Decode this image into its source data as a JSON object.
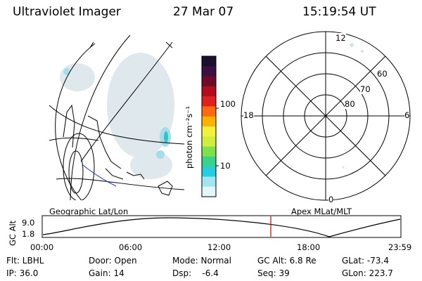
{
  "header": {
    "title": "Ultraviolet Imager",
    "date": "27 Mar 07",
    "time": "15:19:54 UT"
  },
  "map_panel": {
    "caption": "Geographic Lat/Lon"
  },
  "colorbar": {
    "unit_label": "photon cm⁻²s⁻¹",
    "tick_labels": [
      "100",
      "10"
    ],
    "colors": [
      "#1a0f2e",
      "#3b0f3f",
      "#6e0a28",
      "#b30d1d",
      "#e02020",
      "#ff6a10",
      "#ffb000",
      "#f5f03a",
      "#cfee40",
      "#7ee04a",
      "#38d28a",
      "#26cde0",
      "#9fe6f0",
      "#e2f6fb"
    ]
  },
  "polar_panel": {
    "caption": "Apex MLat/MLT",
    "mlt_labels": {
      "top": "12",
      "left": "18",
      "right": "6",
      "bottom": "0"
    },
    "lat_labels": [
      "60",
      "70",
      "80"
    ]
  },
  "timeline": {
    "axis_label": "GC Alt",
    "y_ticks": [
      "9.0",
      "1.8"
    ],
    "x_ticks": [
      "00:00",
      "06:00",
      "12:00",
      "18:00",
      "23:59"
    ],
    "current_time_color": "#cc0000"
  },
  "info": {
    "flt": "Flt: LBHL",
    "ip": "IP: 36.0",
    "door": "Door: Open",
    "gain": "Gain: 14",
    "mode": "Mode: Normal",
    "dsp": "Dsp:    -6.4",
    "gc_alt": "GC Alt: 6.8 Re",
    "seq": "Seq: 39",
    "glat": "GLat: -73.4",
    "glon": "GLon: 223.7"
  }
}
